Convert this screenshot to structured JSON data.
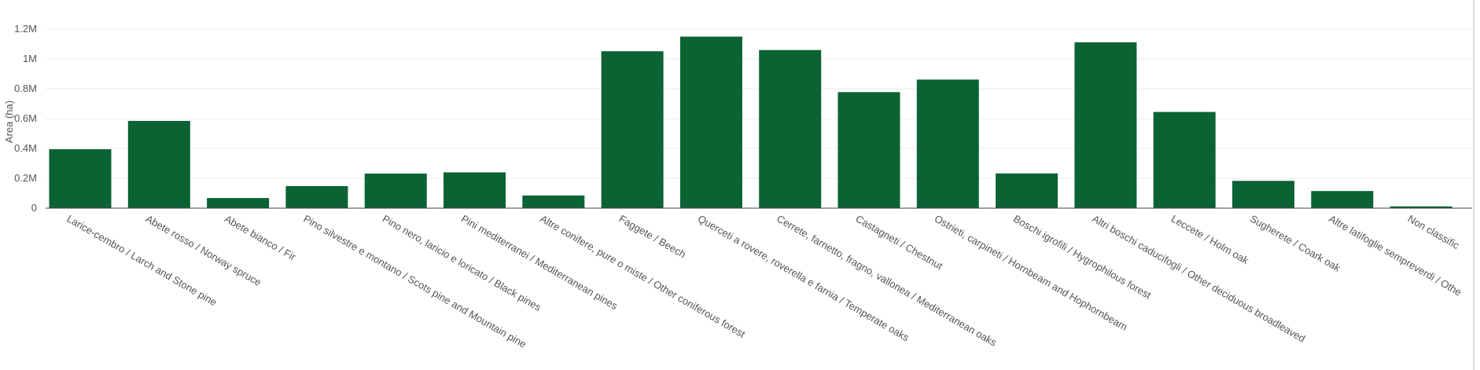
{
  "chart_data": {
    "type": "bar",
    "title": "",
    "xlabel": "",
    "ylabel": "Area (ha)",
    "ylim": [
      0,
      1200000
    ],
    "yticks": [
      0,
      200000,
      400000,
      600000,
      800000,
      1000000,
      1200000
    ],
    "ytick_labels": [
      "0",
      "0.2M",
      "0.4M",
      "0.6M",
      "0.8M",
      "1M",
      "1.2M"
    ],
    "grid": true,
    "legend": "none",
    "bar_color": "#0b6233",
    "categories": [
      "Larice-cembro / Larch and Stone pine",
      "Abete rosso / Norway spruce",
      "Abete bianco / Fir",
      "Pino silvestre e montano / Scots pine and Mountain pine",
      "Pino nero, laricio e loricato / Black pines",
      "Pini mediterranei / Mediterranean pines",
      "Altre conifere, pure o miste / Other coniferous forest",
      "Faggete / Beech",
      "Querceti a rovere, roverella e farnia / Temperate oaks",
      "Cerrete, farnetto, fragno, vallonea / Mediterranean oaks",
      "Castagneti / Chestnut",
      "Ostrieti, carpineti / Hornbeam and Hophornbeam",
      "Boschi igrofili / Hygrophilous forest",
      "Altri boschi caducifogli / Other deciduous broadleaved",
      "Leccete / Holm oak",
      "Sugherete / Coark oak",
      "Altre latifoglie sempreverdi / Other evergreen broadleaved",
      "Non classificato / Not classified"
    ],
    "category_labels_visible": [
      "Larice-cembro / Larch and Stone pine",
      "Abete rosso / Norway spruce",
      "Abete bianco / Fir",
      "Pino silvestre e montano / Scots pine and Mountain pine",
      "Pino nero, laricio e loricato / Black pines",
      "Pini mediterranei / Mediterranean pines",
      "Altre conifere, pure o miste / Other coniferous forest",
      "Faggete / Beech",
      "Querceti a rovere, roverella e farnia / Temperate oaks",
      "Cerrete, farnetto, fragno, vallonea / Mediterranean oaks",
      "Castagneti / Chestnut",
      "Ostrieti, carpineti / Hornbeam and Hophornbeam",
      "Boschi igrofili / Hygrophilous forest",
      "Altri boschi caducifogli / Other deciduous broadleaved",
      "Leccete / Holm oak",
      "Sugherete / Coark oak",
      "Altre latifoglie sempreverdi / Othe",
      "Non classific"
    ],
    "values": [
      395000,
      585000,
      68000,
      148000,
      232000,
      240000,
      85000,
      1052000,
      1150000,
      1060000,
      778000,
      862000,
      233000,
      1112000,
      645000,
      183000,
      115000,
      12000
    ]
  }
}
